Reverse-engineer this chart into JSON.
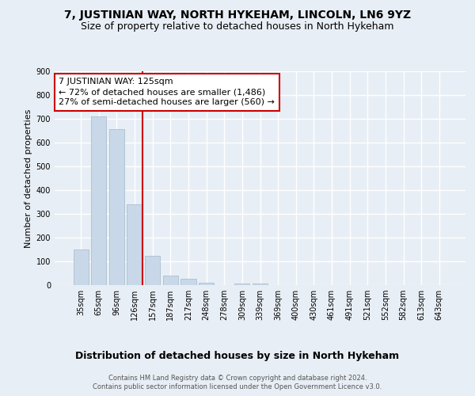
{
  "title": "7, JUSTINIAN WAY, NORTH HYKEHAM, LINCOLN, LN6 9YZ",
  "subtitle": "Size of property relative to detached houses in North Hykeham",
  "xlabel": "Distribution of detached houses by size in North Hykeham",
  "ylabel": "Number of detached properties",
  "footer_line1": "Contains HM Land Registry data © Crown copyright and database right 2024.",
  "footer_line2": "Contains public sector information licensed under the Open Government Licence v3.0.",
  "categories": [
    "35sqm",
    "65sqm",
    "96sqm",
    "126sqm",
    "157sqm",
    "187sqm",
    "217sqm",
    "248sqm",
    "278sqm",
    "309sqm",
    "339sqm",
    "369sqm",
    "400sqm",
    "430sqm",
    "461sqm",
    "491sqm",
    "521sqm",
    "552sqm",
    "582sqm",
    "613sqm",
    "643sqm"
  ],
  "values": [
    150,
    710,
    655,
    340,
    125,
    40,
    27,
    10,
    0,
    8,
    8,
    0,
    0,
    0,
    0,
    0,
    0,
    0,
    0,
    0,
    0
  ],
  "bar_color": "#c8d8e8",
  "bar_edge_color": "#a0b8cc",
  "annotation_text": "7 JUSTINIAN WAY: 125sqm\n← 72% of detached houses are smaller (1,486)\n27% of semi-detached houses are larger (560) →",
  "annotation_box_color": "#ffffff",
  "annotation_box_edge_color": "#cc0000",
  "marker_line_color": "#cc0000",
  "marker_bar_index": 3,
  "ylim": [
    0,
    900
  ],
  "yticks": [
    0,
    100,
    200,
    300,
    400,
    500,
    600,
    700,
    800,
    900
  ],
  "bg_color": "#e8eef5",
  "plot_bg_color": "#e8eef5",
  "grid_color": "#ffffff",
  "title_fontsize": 10,
  "subtitle_fontsize": 9,
  "xlabel_fontsize": 9,
  "ylabel_fontsize": 8,
  "tick_fontsize": 7,
  "footer_fontsize": 6,
  "annotation_fontsize": 8
}
